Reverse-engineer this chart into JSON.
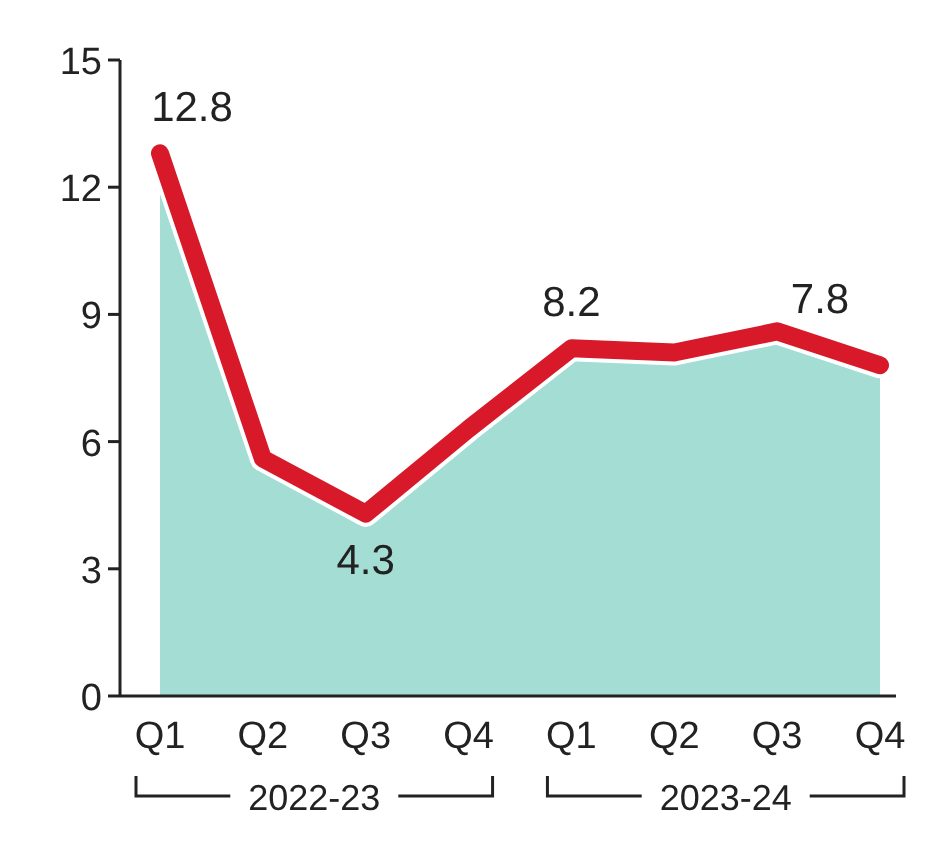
{
  "chart_data": {
    "type": "line",
    "categories": [
      "Q1",
      "Q2",
      "Q3",
      "Q4",
      "Q1",
      "Q2",
      "Q3",
      "Q4"
    ],
    "series": [
      {
        "type": "area",
        "color": "#a3ddd3",
        "values": [
          12.8,
          5.6,
          4.3,
          6.3,
          8.2,
          8.1,
          8.6,
          7.8
        ]
      },
      {
        "color": "#d7192a",
        "values": [
          12.8,
          5.6,
          4.3,
          6.3,
          8.2,
          8.1,
          8.6,
          7.8
        ],
        "value_labels": [
          "12.8",
          null,
          "4.3",
          null,
          "8.2",
          null,
          null,
          "7.8"
        ]
      }
    ],
    "ylim": [
      0,
      15
    ],
    "yticks": [
      0,
      3,
      6,
      9,
      12,
      15
    ],
    "grid": false,
    "annotations": [
      "2022-23",
      "2023-24"
    ]
  }
}
